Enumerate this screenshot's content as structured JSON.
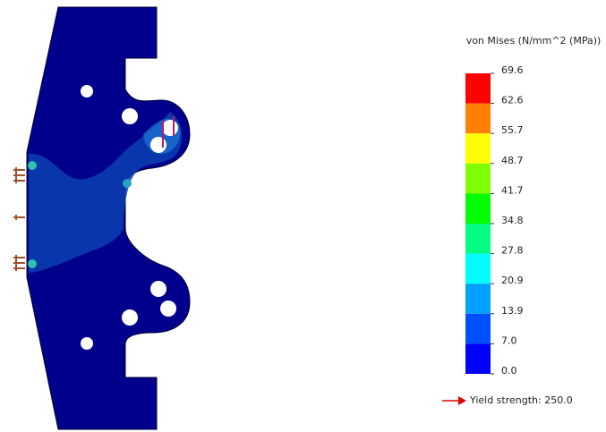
{
  "legend": {
    "title": "von Mises (N/mm^2 (MPa))",
    "labels": [
      "69.6",
      "62.6",
      "55.7",
      "48.7",
      "41.7",
      "34.8",
      "27.8",
      "20.9",
      "13.9",
      "7.0",
      "0.0"
    ],
    "colors": [
      "#ff0000",
      "#ff8000",
      "#ffff00",
      "#80ff00",
      "#00ff00",
      "#00ff80",
      "#00ffff",
      "#00a0ff",
      "#0050ff",
      "#0000ff"
    ]
  },
  "yield_label": "Yield strength: 250.0"
}
